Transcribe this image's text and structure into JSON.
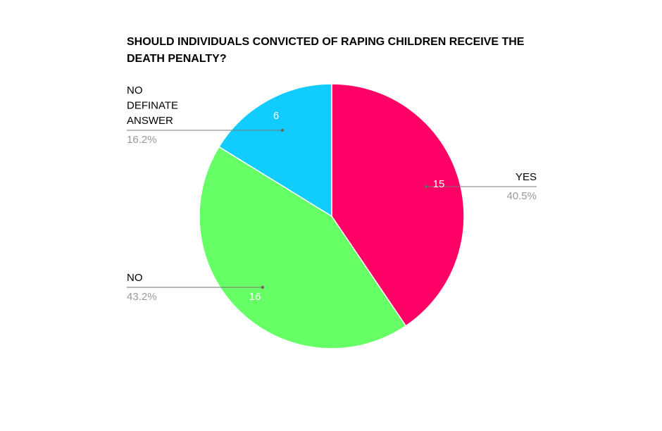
{
  "chart_data": {
    "type": "pie",
    "title": "SHOULD INDIVIDUALS CONVICTED OF RAPING CHILDREN RECEIVE THE DEATH PENALTY?",
    "categories": [
      "YES",
      "NO",
      "NO DEFINATE ANSWER"
    ],
    "values": [
      15,
      16,
      6
    ],
    "percent_labels": [
      "40.5%",
      "43.2%",
      "16.2%"
    ],
    "colors": [
      "#ff0066",
      "#66ff66",
      "#11ccff"
    ]
  }
}
